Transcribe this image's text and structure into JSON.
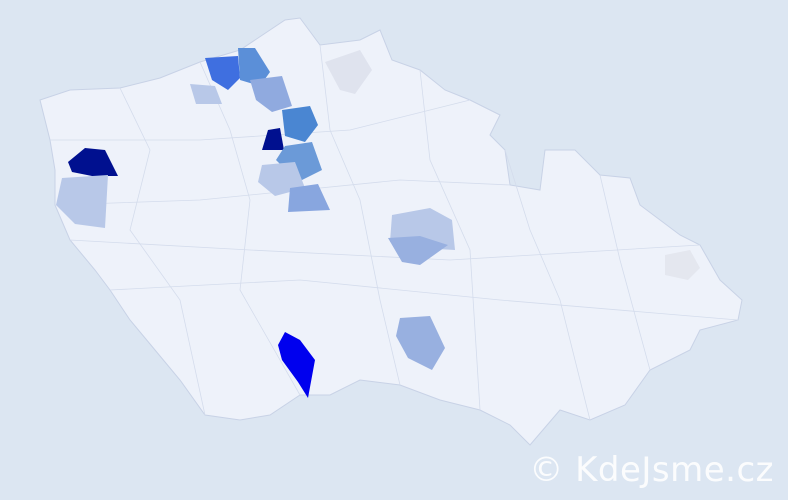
{
  "map": {
    "country_fill": "#eef2fa",
    "border_color": "#c8d2e6",
    "background": "#dce6f2",
    "highlighted_regions": [
      {
        "name": "region-northwest-1",
        "color": "#3f6fe0"
      },
      {
        "name": "region-northwest-2",
        "color": "#5b8fd8"
      },
      {
        "name": "region-northwest-3",
        "color": "#b8c8e8"
      },
      {
        "name": "region-north-1",
        "color": "#90aadf"
      },
      {
        "name": "region-north-2",
        "color": "#dfe3ee"
      },
      {
        "name": "region-central-1",
        "color": "#4a86d2"
      },
      {
        "name": "region-central-2",
        "color": "#00108f"
      },
      {
        "name": "region-central-3",
        "color": "#6b9ad8"
      },
      {
        "name": "region-central-4",
        "color": "#b8c8e8"
      },
      {
        "name": "region-central-5",
        "color": "#88a6df"
      },
      {
        "name": "region-west",
        "color": "#00108f"
      },
      {
        "name": "region-west-2",
        "color": "#b8c8e8"
      },
      {
        "name": "region-vysocina-1",
        "color": "#b8c8e8"
      },
      {
        "name": "region-vysocina-2",
        "color": "#98b0e0"
      },
      {
        "name": "region-south-1",
        "color": "#0000ee"
      },
      {
        "name": "region-south-2",
        "color": "#98b0e0"
      },
      {
        "name": "region-east",
        "color": "#e4e7ef"
      }
    ]
  },
  "watermark": "© KdeJsme.cz"
}
